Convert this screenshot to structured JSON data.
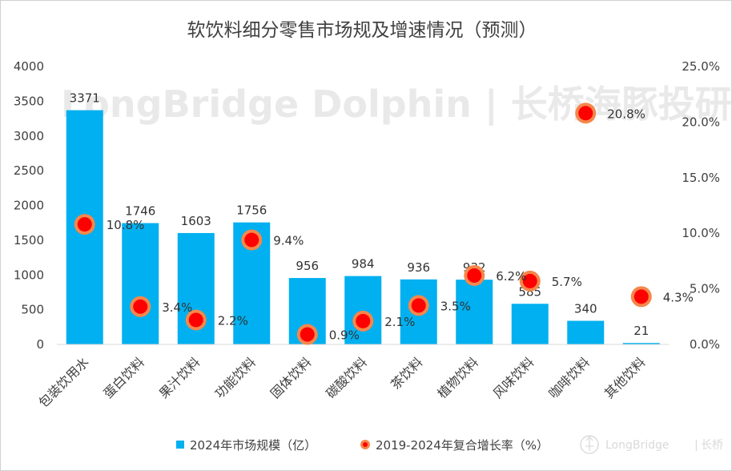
{
  "chart_data": {
    "type": "bar",
    "title": "软饮料细分零售市场规及增速情况（预测）",
    "categories": [
      "包装饮用水",
      "蛋白饮料",
      "果汁饮料",
      "功能饮料",
      "固体饮料",
      "碳酸饮料",
      "茶饮料",
      "植物饮料",
      "风味饮料",
      "咖啡饮料",
      "其他饮料"
    ],
    "series": [
      {
        "name": "2024年市场规模（亿）",
        "type": "bar",
        "axis": "left",
        "color": "#00b0f0",
        "values": [
          3371,
          1746,
          1603,
          1756,
          956,
          984,
          936,
          932,
          585,
          340,
          21
        ],
        "labels": [
          "3371",
          "1746",
          "1603",
          "1756",
          "956",
          "984",
          "936",
          "932",
          "585",
          "340",
          "21"
        ]
      },
      {
        "name": "2019-2024年复合增长率（%）",
        "type": "scatter",
        "axis": "right",
        "color": "#ff0000",
        "edge_color": "#f4874b",
        "values": [
          10.8,
          3.4,
          2.2,
          9.4,
          0.9,
          2.1,
          3.5,
          6.2,
          5.7,
          20.8,
          4.3
        ],
        "labels": [
          "10.8%",
          "3.4%",
          "2.2%",
          "9.4%",
          "0.9%",
          "2.1%",
          "3.5%",
          "6.2%",
          "5.7%",
          "20.8%",
          "4.3%"
        ]
      }
    ],
    "y_left": {
      "min": 0,
      "max": 4000,
      "ticks": [
        "0",
        "500",
        "1000",
        "1500",
        "2000",
        "2500",
        "3000",
        "3500",
        "4000"
      ]
    },
    "y_right": {
      "min": 0,
      "max": 25,
      "ticks": [
        "0.0%",
        "5.0%",
        "10.0%",
        "15.0%",
        "20.0%",
        "25.0%"
      ]
    },
    "grid": false,
    "legend_position": "bottom"
  },
  "watermark": {
    "text": "LongBridge Dolphin | 长桥海豚投研"
  },
  "brand": {
    "name": "LongBridge",
    "sub": "长桥"
  }
}
